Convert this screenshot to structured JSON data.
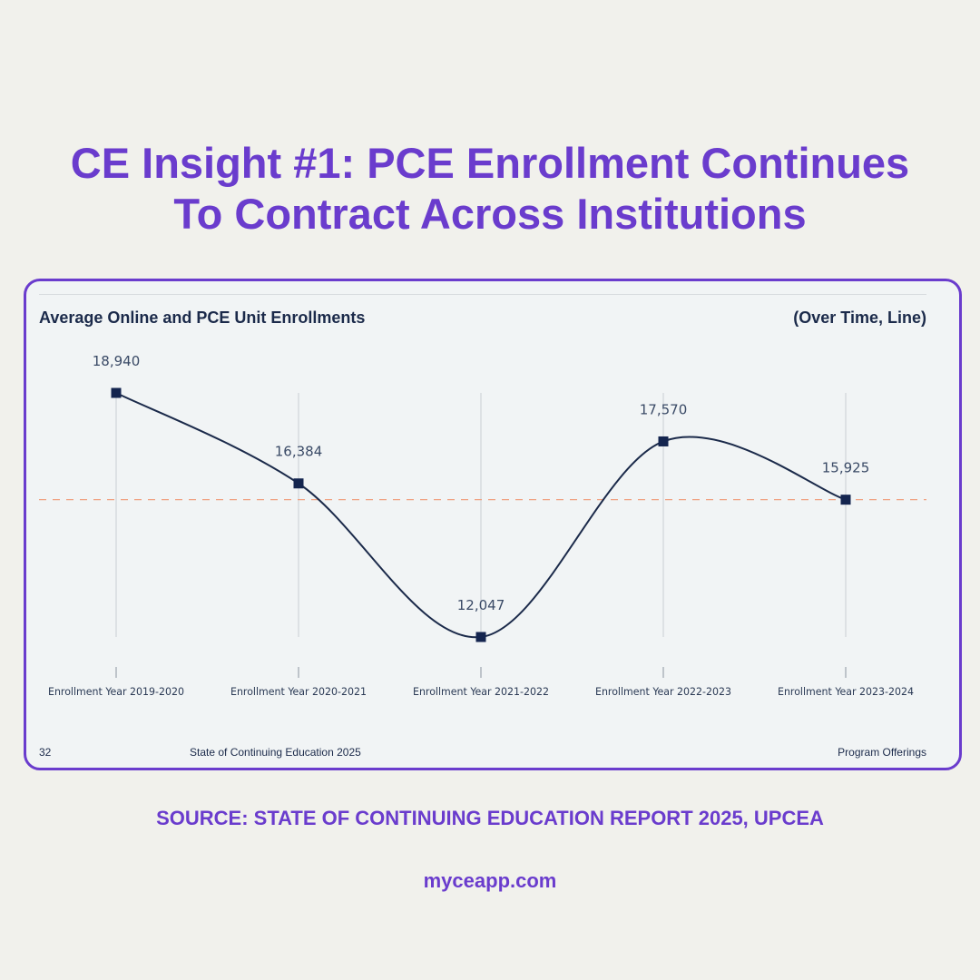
{
  "headline": {
    "line1": "CE Insight #1: PCE Enrollment Continues",
    "line2": "To Contract Across Institutions"
  },
  "chart_data": {
    "type": "line",
    "title": "Average Online and PCE Unit Enrollments",
    "subtitle": "(Over Time, Line)",
    "categories": [
      "Enrollment Year 2019-2020",
      "Enrollment Year 2020-2021",
      "Enrollment Year 2021-2022",
      "Enrollment Year 2022-2023",
      "Enrollment Year 2023-2024"
    ],
    "values": [
      18940,
      16384,
      12047,
      17570,
      15925
    ],
    "data_labels": [
      "18,940",
      "16,384",
      "12,047",
      "17,570",
      "15,925"
    ],
    "reference_line": 15925,
    "line_color": "#1b2a4a",
    "reference_color": "#f0a080",
    "grid": "vertical",
    "legend": "none"
  },
  "footer": {
    "page": "32",
    "report": "State of Continuing Education 2025",
    "section": "Program Offerings"
  },
  "source": "SOURCE: STATE OF CONTINUING EDUCATION REPORT 2025, UPCEA",
  "site": "myceapp.com"
}
